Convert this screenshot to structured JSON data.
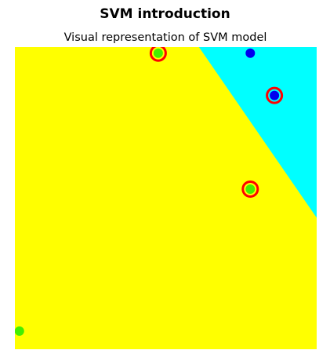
{
  "chart_data": {
    "type": "scatter",
    "suptitle": "SVM introduction",
    "title": "Visual representation of SVM model",
    "xlabel": "",
    "ylabel": "",
    "xlim": [
      0,
      10
    ],
    "ylim": [
      0,
      10
    ],
    "grid": false,
    "axes_visible": false,
    "decision_regions": {
      "boundary": [
        [
          6.1,
          10
        ],
        [
          10,
          4.35
        ]
      ],
      "class_a_region_color": "#ffff00",
      "class_b_region_color": "#00ffff"
    },
    "series": [
      {
        "class": "A",
        "color": "#44ee00",
        "points": [
          {
            "x": 4.75,
            "y": 9.8,
            "support_vector": true
          },
          {
            "x": 7.8,
            "y": 5.3,
            "support_vector": true
          },
          {
            "x": 0.15,
            "y": 0.6,
            "support_vector": false
          }
        ]
      },
      {
        "class": "B",
        "color": "#0000ee",
        "points": [
          {
            "x": 8.6,
            "y": 8.4,
            "support_vector": true
          },
          {
            "x": 7.8,
            "y": 9.8,
            "support_vector": false
          }
        ]
      }
    ],
    "support_vector_ring_color": "#ff0000"
  }
}
